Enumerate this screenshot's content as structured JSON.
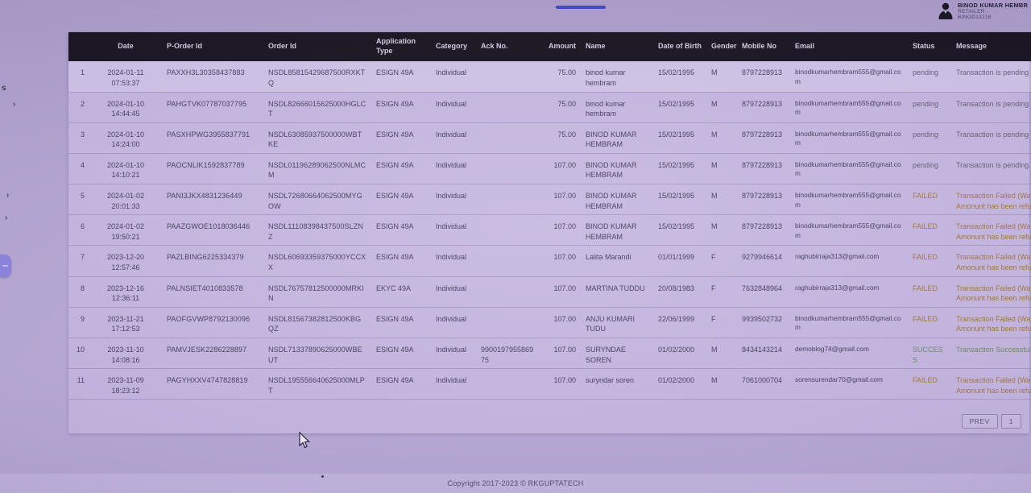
{
  "topbar": {
    "progress_color": "#3e47c4",
    "user": {
      "name": "BINOD KUMAR HEMBR",
      "role": "RETAILER -",
      "uid": "BINOD13218"
    }
  },
  "edge": {
    "s_label": "s",
    "chevron": "›"
  },
  "table": {
    "columns": [
      {
        "key": "num",
        "label": "",
        "align": "right",
        "width": 26
      },
      {
        "key": "date",
        "label": "Date",
        "align": "center",
        "width": 90
      },
      {
        "key": "porder",
        "label": "P-Order Id",
        "align": "left",
        "width": 126
      },
      {
        "key": "order",
        "label": "Order Id",
        "align": "left",
        "width": 134
      },
      {
        "key": "apptype",
        "label": "Application Type",
        "align": "left",
        "width": 74
      },
      {
        "key": "category",
        "label": "Category",
        "align": "left",
        "width": 56
      },
      {
        "key": "ackno",
        "label": "Ack No.",
        "align": "left",
        "width": 80
      },
      {
        "key": "amount",
        "label": "Amount",
        "align": "right",
        "width": 50
      },
      {
        "key": "name",
        "label": "Name",
        "align": "left",
        "width": 90
      },
      {
        "key": "dob",
        "label": "Date of Birth",
        "align": "left",
        "width": 66
      },
      {
        "key": "gender",
        "label": "Gender",
        "align": "left",
        "width": 38
      },
      {
        "key": "mobile",
        "label": "Mobile No",
        "align": "left",
        "width": 66
      },
      {
        "key": "email",
        "label": "Email",
        "align": "left",
        "width": 146
      },
      {
        "key": "status",
        "label": "Status",
        "align": "left",
        "width": 54
      },
      {
        "key": "message",
        "label": "Message",
        "align": "left",
        "width": 138
      }
    ],
    "rows": [
      {
        "num": "1",
        "date": "2024-01-11 07:53:37",
        "porder": "PAXXH3L30358437883",
        "order": "NSDL85815429687500RXKTQ",
        "apptype": "ESIGN 49A",
        "category": "Individual",
        "ackno": "",
        "amount": "75.00",
        "name": "binod kumar hembram",
        "dob": "15/02/1995",
        "gender": "M",
        "mobile": "8797228913",
        "email": "binodkumarhembram555@gmail.com",
        "status": "pending",
        "message": "Transaction is pending"
      },
      {
        "num": "2",
        "date": "2024-01-10 14:44:45",
        "porder": "PAHGTVK07787037795",
        "order": "NSDL82666015625000HGLCT",
        "apptype": "ESIGN 49A",
        "category": "Individual",
        "ackno": "",
        "amount": "75.00",
        "name": "binod kumar hembram",
        "dob": "15/02/1995",
        "gender": "M",
        "mobile": "8797228913",
        "email": "binodkumarhembram555@gmail.com",
        "status": "pending",
        "message": "Transaction is pending"
      },
      {
        "num": "3",
        "date": "2024-01-10 14:24:00",
        "porder": "PASXHPWG3955837791",
        "order": "NSDL63085937500000WBTKE",
        "apptype": "ESIGN 49A",
        "category": "Individual",
        "ackno": "",
        "amount": "75.00",
        "name": "BINOD KUMAR HEMBRAM",
        "dob": "15/02/1995",
        "gender": "M",
        "mobile": "8797228913",
        "email": "binodkumarhembram555@gmail.com",
        "status": "pending",
        "message": "Transaction is pending"
      },
      {
        "num": "4",
        "date": "2024-01-10 14:10:21",
        "porder": "PAOCNLIK1592837789",
        "order": "NSDL01196289062500NLMCM",
        "apptype": "ESIGN 49A",
        "category": "Individual",
        "ackno": "",
        "amount": "107.00",
        "name": "BINOD KUMAR HEMBRAM",
        "dob": "15/02/1995",
        "gender": "M",
        "mobile": "8797228913",
        "email": "binodkumarhembram555@gmail.com",
        "status": "pending",
        "message": "Transaction is pending"
      },
      {
        "num": "5",
        "date": "2024-01-02 20:01:33",
        "porder": "PANI3JKX4831236449",
        "order": "NSDL72680664062500MYGOW",
        "apptype": "ESIGN 49A",
        "category": "Individual",
        "ackno": "",
        "amount": "107.00",
        "name": "BINOD KUMAR HEMBRAM",
        "dob": "15/02/1995",
        "gender": "M",
        "mobile": "8797228913",
        "email": "binodkumarhembram555@gmail.com",
        "status": "FAILED",
        "message": "Transaction Failed (Wallet Amonunt has been refunded)"
      },
      {
        "num": "6",
        "date": "2024-01-02 19:50:21",
        "porder": "PAAZGWOE1018036446",
        "order": "NSDL11108398437500SLZNZ",
        "apptype": "ESIGN 49A",
        "category": "Individual",
        "ackno": "",
        "amount": "107.00",
        "name": "BINOD KUMAR HEMBRAM",
        "dob": "15/02/1995",
        "gender": "M",
        "mobile": "8797228913",
        "email": "binodkumarhembram555@gmail.com",
        "status": "FAILED",
        "message": "Transaction Failed (Wallet Amonunt has been refunded)"
      },
      {
        "num": "7",
        "date": "2023-12-20 12:57:46",
        "porder": "PAZLBING6225334379",
        "order": "NSDL60693359375000YCCXX",
        "apptype": "ESIGN 49A",
        "category": "Individual",
        "ackno": "",
        "amount": "107.00",
        "name": "Lalita Marandi",
        "dob": "01/01/1999",
        "gender": "F",
        "mobile": "9279946614",
        "email": "raghubirraja313@gmail.com",
        "status": "FAILED",
        "message": "Transaction Failed (Wallet Amonunt has been refunded)"
      },
      {
        "num": "8",
        "date": "2023-12-16 12:36:11",
        "porder": "PALNSIET4010833578",
        "order": "NSDL76757812500000MRKIN",
        "apptype": "EKYC 49A",
        "category": "Individual",
        "ackno": "",
        "amount": "107.00",
        "name": "MARTINA TUDDU",
        "dob": "20/08/1983",
        "gender": "F",
        "mobile": "7632848964",
        "email": "raghubirraja313@gmail.com",
        "status": "FAILED",
        "message": "Transaction Failed (Wallet Amonunt has been refunded)"
      },
      {
        "num": "9",
        "date": "2023-11-21 17:12:53",
        "porder": "PAOFGVWP8792130096",
        "order": "NSDL81567382812500KBGQZ",
        "apptype": "ESIGN 49A",
        "category": "Individual",
        "ackno": "",
        "amount": "107.00",
        "name": "ANJU KUMARI TUDU",
        "dob": "22/06/1999",
        "gender": "F",
        "mobile": "9939502732",
        "email": "binodkumarhembram555@gmail.com",
        "status": "FAILED",
        "message": "Transaction Failed (Wallet Amonunt has been refunded)"
      },
      {
        "num": "10",
        "date": "2023-11-10 14:08:16",
        "porder": "PAMVJESK2286228897",
        "order": "NSDL71337890625000WBEUT",
        "apptype": "ESIGN 49A",
        "category": "Individual",
        "ackno": "990019795586975",
        "amount": "107.00",
        "name": "SURYNDAE SOREN",
        "dob": "01/02/2000",
        "gender": "M",
        "mobile": "8434143214",
        "email": "demoblog74@gmail.com",
        "status": "SUCCESS",
        "message": "Transaction Successful"
      },
      {
        "num": "11",
        "date": "2023-11-09 18:23:12",
        "porder": "PAGYHXXV4747828819",
        "order": "NSDL195556640625000MLPT",
        "apptype": "ESIGN 49A",
        "category": "Individual",
        "ackno": "",
        "amount": "107.00",
        "name": "suryndar soren",
        "dob": "01/02/2000",
        "gender": "M",
        "mobile": "7061000704",
        "email": "sorensurendar70@gmail.com",
        "status": "FAILED",
        "message": "Transaction Failed (Wallet Amonunt has been refunded"
      }
    ]
  },
  "status_colors": {
    "pending": "#67617a",
    "FAILED": "#a2793f",
    "SUCCESS": "#6e8c66"
  },
  "pagination": {
    "prev_label": "PREV",
    "page_label": "1"
  },
  "footer": {
    "copyright": "Copyright 2017-2023 © RKGUPTATECH"
  }
}
